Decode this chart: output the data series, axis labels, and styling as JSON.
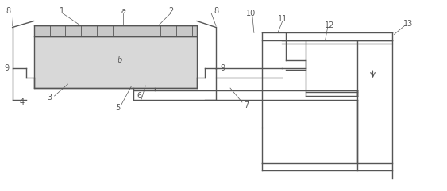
{
  "figsize": [
    5.63,
    2.41
  ],
  "dpi": 100,
  "bg_color": "#ffffff",
  "lc": "#555555",
  "lw": 1.0,
  "fill_a": "#c8c8c8",
  "fill_b": "#d8d8d8",
  "fill_side": "#e0e0e0"
}
